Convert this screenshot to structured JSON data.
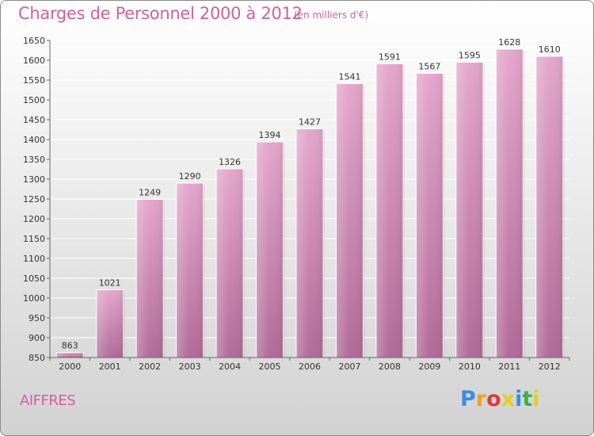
{
  "header": {
    "title": "Charges de Personnel 2000 à 2012",
    "unit": "(en milliers d'€)"
  },
  "footer": {
    "commune": "AIFFRES",
    "logo": [
      "P",
      "r",
      "o",
      "x",
      "i",
      "t",
      "i"
    ],
    "logo_colors": [
      "#3b8de0",
      "#f0a020",
      "#e03a3a",
      "#e8cc20",
      "#3b8de0",
      "#3bb04a",
      "#e8cc20"
    ]
  },
  "chart_data": {
    "type": "bar",
    "title": "Charges de Personnel 2000 à 2012",
    "subtitle": "(en milliers d'€)",
    "categories": [
      "2000",
      "2001",
      "2002",
      "2003",
      "2004",
      "2005",
      "2006",
      "2007",
      "2008",
      "2009",
      "2010",
      "2011",
      "2012"
    ],
    "values": [
      863,
      1021,
      1249,
      1290,
      1326,
      1394,
      1427,
      1541,
      1591,
      1567,
      1595,
      1628,
      1610
    ],
    "ylim": [
      850,
      1650
    ],
    "yticks": [
      850,
      900,
      950,
      1000,
      1050,
      1100,
      1150,
      1200,
      1250,
      1300,
      1350,
      1400,
      1450,
      1500,
      1550,
      1600,
      1650
    ],
    "grid": true,
    "bar_color": "#d98ab8"
  }
}
